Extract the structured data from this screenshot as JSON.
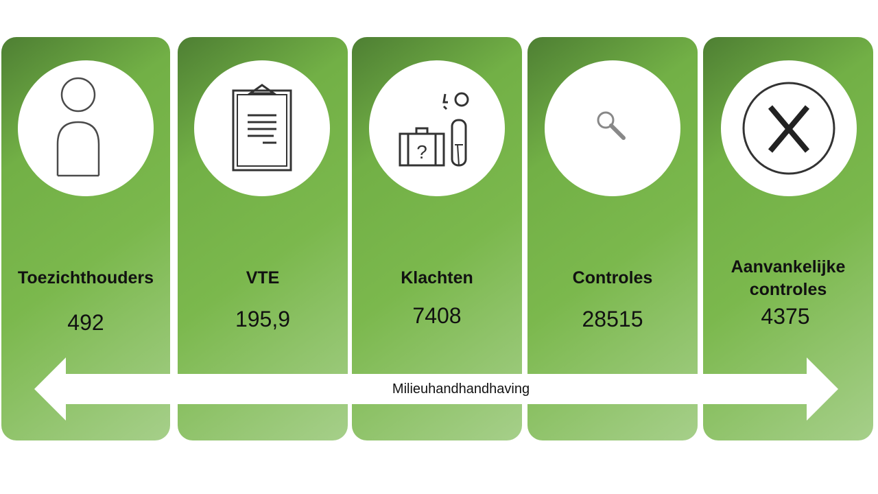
{
  "cards": [
    {
      "label": "Toezichthouders",
      "value": "492",
      "icon": "person-icon"
    },
    {
      "label": "VTE",
      "value": "195,9",
      "icon": "clipboard-icon"
    },
    {
      "label": "Klachten",
      "value": "7408",
      "icon": "complaint-luggage-icon"
    },
    {
      "label": "Controles",
      "value": "28515",
      "icon": "magnifier-icon"
    },
    {
      "label_line1": "Aanvankelijke",
      "label_line2": "controles",
      "value": "4375",
      "icon": "close-x-icon"
    }
  ],
  "arrow": {
    "label": "Milieuhandhandhaving"
  },
  "colors": {
    "card_dark": "#4e7f33",
    "card_mid": "#7bb84d",
    "card_light": "#a6cf8a"
  }
}
